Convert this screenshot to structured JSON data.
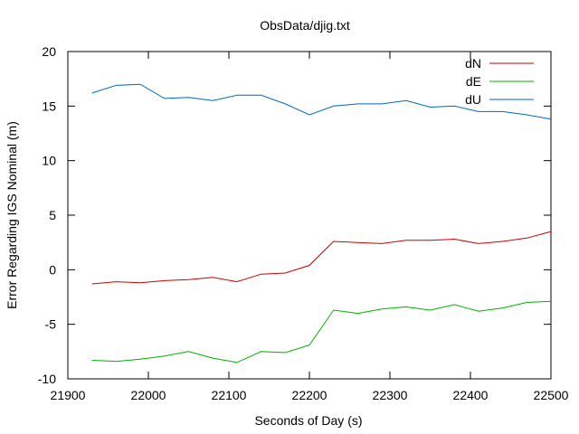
{
  "chart_data": {
    "type": "line",
    "title": "ObsData/djig.txt",
    "xlabel": "Seconds of Day (s)",
    "ylabel": "Error Regarding IGS Nominal (m)",
    "xlim": [
      21900,
      22500
    ],
    "ylim": [
      -10,
      20
    ],
    "xticks": [
      21900,
      22000,
      22100,
      22200,
      22300,
      22400,
      22500
    ],
    "yticks": [
      -10,
      -5,
      0,
      5,
      10,
      15,
      20
    ],
    "grid": false,
    "legend_position": "top-right",
    "x": [
      21930,
      21960,
      21990,
      22020,
      22050,
      22080,
      22110,
      22140,
      22170,
      22200,
      22230,
      22260,
      22290,
      22320,
      22350,
      22380,
      22410,
      22440,
      22470,
      22500
    ],
    "series": [
      {
        "name": "dN",
        "color": "#cc0000",
        "values": [
          -1.3,
          -1.1,
          -1.2,
          -1.0,
          -0.9,
          -0.7,
          -1.1,
          -0.4,
          -0.3,
          0.4,
          2.6,
          2.5,
          2.4,
          2.7,
          2.7,
          2.8,
          2.4,
          2.6,
          2.9,
          3.5
        ]
      },
      {
        "name": "dE",
        "color": "#00b000",
        "values": [
          -8.3,
          -8.4,
          -8.2,
          -7.9,
          -7.5,
          -8.1,
          -8.5,
          -7.5,
          -7.6,
          -6.9,
          -3.7,
          -4.0,
          -3.6,
          -3.4,
          -3.7,
          -3.2,
          -3.8,
          -3.5,
          -3.0,
          -2.9
        ]
      },
      {
        "name": "dU",
        "color": "#0066cc",
        "values": [
          16.2,
          16.9,
          17.0,
          15.7,
          15.8,
          15.5,
          16.0,
          16.0,
          15.2,
          14.2,
          15.0,
          15.2,
          15.2,
          15.5,
          14.9,
          15.0,
          14.5,
          14.5,
          14.2,
          13.8
        ]
      }
    ]
  }
}
